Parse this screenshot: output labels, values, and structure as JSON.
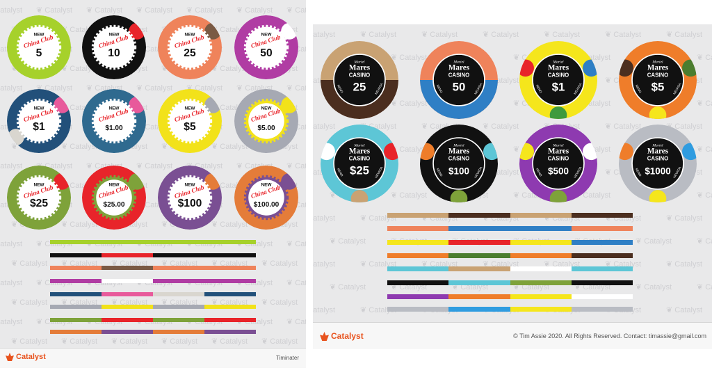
{
  "watermark_text": "Catalyst",
  "left": {
    "chip_brand": "China Club",
    "new_label": "NEW",
    "chips": [
      {
        "value": "5",
        "accent": "#a6d12b",
        "inlay": "#ffffff",
        "spots": []
      },
      {
        "value": "10",
        "accent": "#111111",
        "inlay": "#ffffff",
        "spots": [
          "#e8242a"
        ]
      },
      {
        "value": "25",
        "accent": "#ef835b",
        "inlay": "#ffffff",
        "spots": [
          "#7a5a44"
        ]
      },
      {
        "value": "50",
        "accent": "#b03ca3",
        "inlay": "#ffffff",
        "spots": [
          "#ffffff"
        ]
      },
      {
        "value": "$1",
        "accent": "#22507a",
        "inlay": "#ffffff",
        "spots": [
          "#e85a9b",
          "#d9d6cf"
        ]
      },
      {
        "value": "$1.00",
        "accent": "#2f6a8f",
        "inlay": "#ffffff",
        "spots": [
          "#e85a9b"
        ]
      },
      {
        "value": "$5",
        "accent": "#f2e21a",
        "inlay": "#ffffff",
        "spots": [
          "#a6a9b3"
        ]
      },
      {
        "value": "$5.00",
        "accent": "#a6a9b3",
        "inlay": "#f2e21a",
        "spots": [
          "#f2e21a"
        ]
      },
      {
        "value": "$25",
        "accent": "#7ea23a",
        "inlay": "#ffffff",
        "spots": [
          "#e8242a"
        ]
      },
      {
        "value": "$25.00",
        "accent": "#e8242a",
        "inlay": "#7ea23a",
        "spots": [
          "#7ea23a"
        ]
      },
      {
        "value": "$100",
        "accent": "#7a4f93",
        "inlay": "#ffffff",
        "spots": [
          "#e47c39"
        ]
      },
      {
        "value": "$100.00",
        "accent": "#e47c39",
        "inlay": "#7a4f93",
        "spots": [
          "#7a4f93"
        ]
      }
    ],
    "stripes": [
      [
        "#a6d12b",
        "#a6d12b",
        "#a6d12b",
        "#a6d12b"
      ],
      [
        "#111111",
        "#e8242a",
        "#111111",
        "#111111"
      ],
      [
        "#ef835b",
        "#7a5a44",
        "#ef835b",
        "#ef835b"
      ],
      [
        "#b03ca3",
        "#ffffff",
        "#b03ca3",
        "#b03ca3"
      ],
      [
        "#22507a",
        "#e85a9b",
        "#d9d6cf",
        "#22507a"
      ],
      [
        "#a6a9b3",
        "#f2e21a",
        "#a6a9b3",
        "#f2e21a"
      ],
      [
        "#7ea23a",
        "#e8242a",
        "#7ea23a",
        "#e8242a"
      ],
      [
        "#e47c39",
        "#7a4f93",
        "#e47c39",
        "#7a4f93"
      ]
    ],
    "footer": {
      "brand": "Catalyst",
      "credit": "Timinater"
    }
  },
  "right": {
    "chip_brand_top": "Mares",
    "chip_brand_bottom": "CASINO",
    "chip_script": "Mariel",
    "chip_rim_left": "RENO",
    "chip_rim_right": "NEVADA",
    "chips": [
      {
        "value": "25",
        "rim": "#c9a273",
        "rim2": "#4b2e1f",
        "spots": []
      },
      {
        "value": "50",
        "rim": "#ef835b",
        "rim2": "#2f7fc5",
        "spots": []
      },
      {
        "value": "$1",
        "rim": "#f5e61c",
        "rim2": "#f5e61c",
        "spots": [
          "#2f7fc5",
          "#e8242a",
          "#3f9a3e"
        ]
      },
      {
        "value": "$5",
        "rim": "#ef7d2a",
        "rim2": "#ef7d2a",
        "spots": [
          "#4b7d2f",
          "#4b2e1f",
          "#f5e61c"
        ]
      },
      {
        "value": "$25",
        "rim": "#5dc6d6",
        "rim2": "#5dc6d6",
        "spots": [
          "#e8242a",
          "#ffffff",
          "#c9a273"
        ]
      },
      {
        "value": "$100",
        "rim": "#111111",
        "rim2": "#111111",
        "spots": [
          "#5dc6d6",
          "#ef7d2a",
          "#7ea23a"
        ]
      },
      {
        "value": "$500",
        "rim": "#8e3ab0",
        "rim2": "#8e3ab0",
        "spots": [
          "#ffffff",
          "#f5e61c",
          "#7ea23a"
        ]
      },
      {
        "value": "$1000",
        "rim": "#b9bcc3",
        "rim2": "#b9bcc3",
        "spots": [
          "#2f9ce0",
          "#ef7d2a",
          "#f5e61c"
        ]
      }
    ],
    "stripes": [
      [
        "#c9a273",
        "#4b2e1f",
        "#c9a273",
        "#4b2e1f"
      ],
      [
        "#ef835b",
        "#2f7fc5",
        "#2f7fc5",
        "#ef835b"
      ],
      [
        "#f5e61c",
        "#e8242a",
        "#f5e61c",
        "#2f7fc5"
      ],
      [
        "#ef7d2a",
        "#4b7d2f",
        "#ef7d2a",
        "#4b2e1f"
      ],
      [
        "#5dc6d6",
        "#c9a273",
        "#ffffff",
        "#5dc6d6"
      ],
      [
        "#111111",
        "#5dc6d6",
        "#7ea23a",
        "#111111"
      ],
      [
        "#8e3ab0",
        "#ef7d2a",
        "#f5e61c",
        "#ffffff"
      ],
      [
        "#b9bcc3",
        "#2f9ce0",
        "#f5e61c",
        "#b9bcc3"
      ]
    ],
    "footer": {
      "brand": "Catalyst",
      "credit": "© Tim Assie 2020. All Rights Reserved. Contact: timassie@gmail.com"
    }
  }
}
